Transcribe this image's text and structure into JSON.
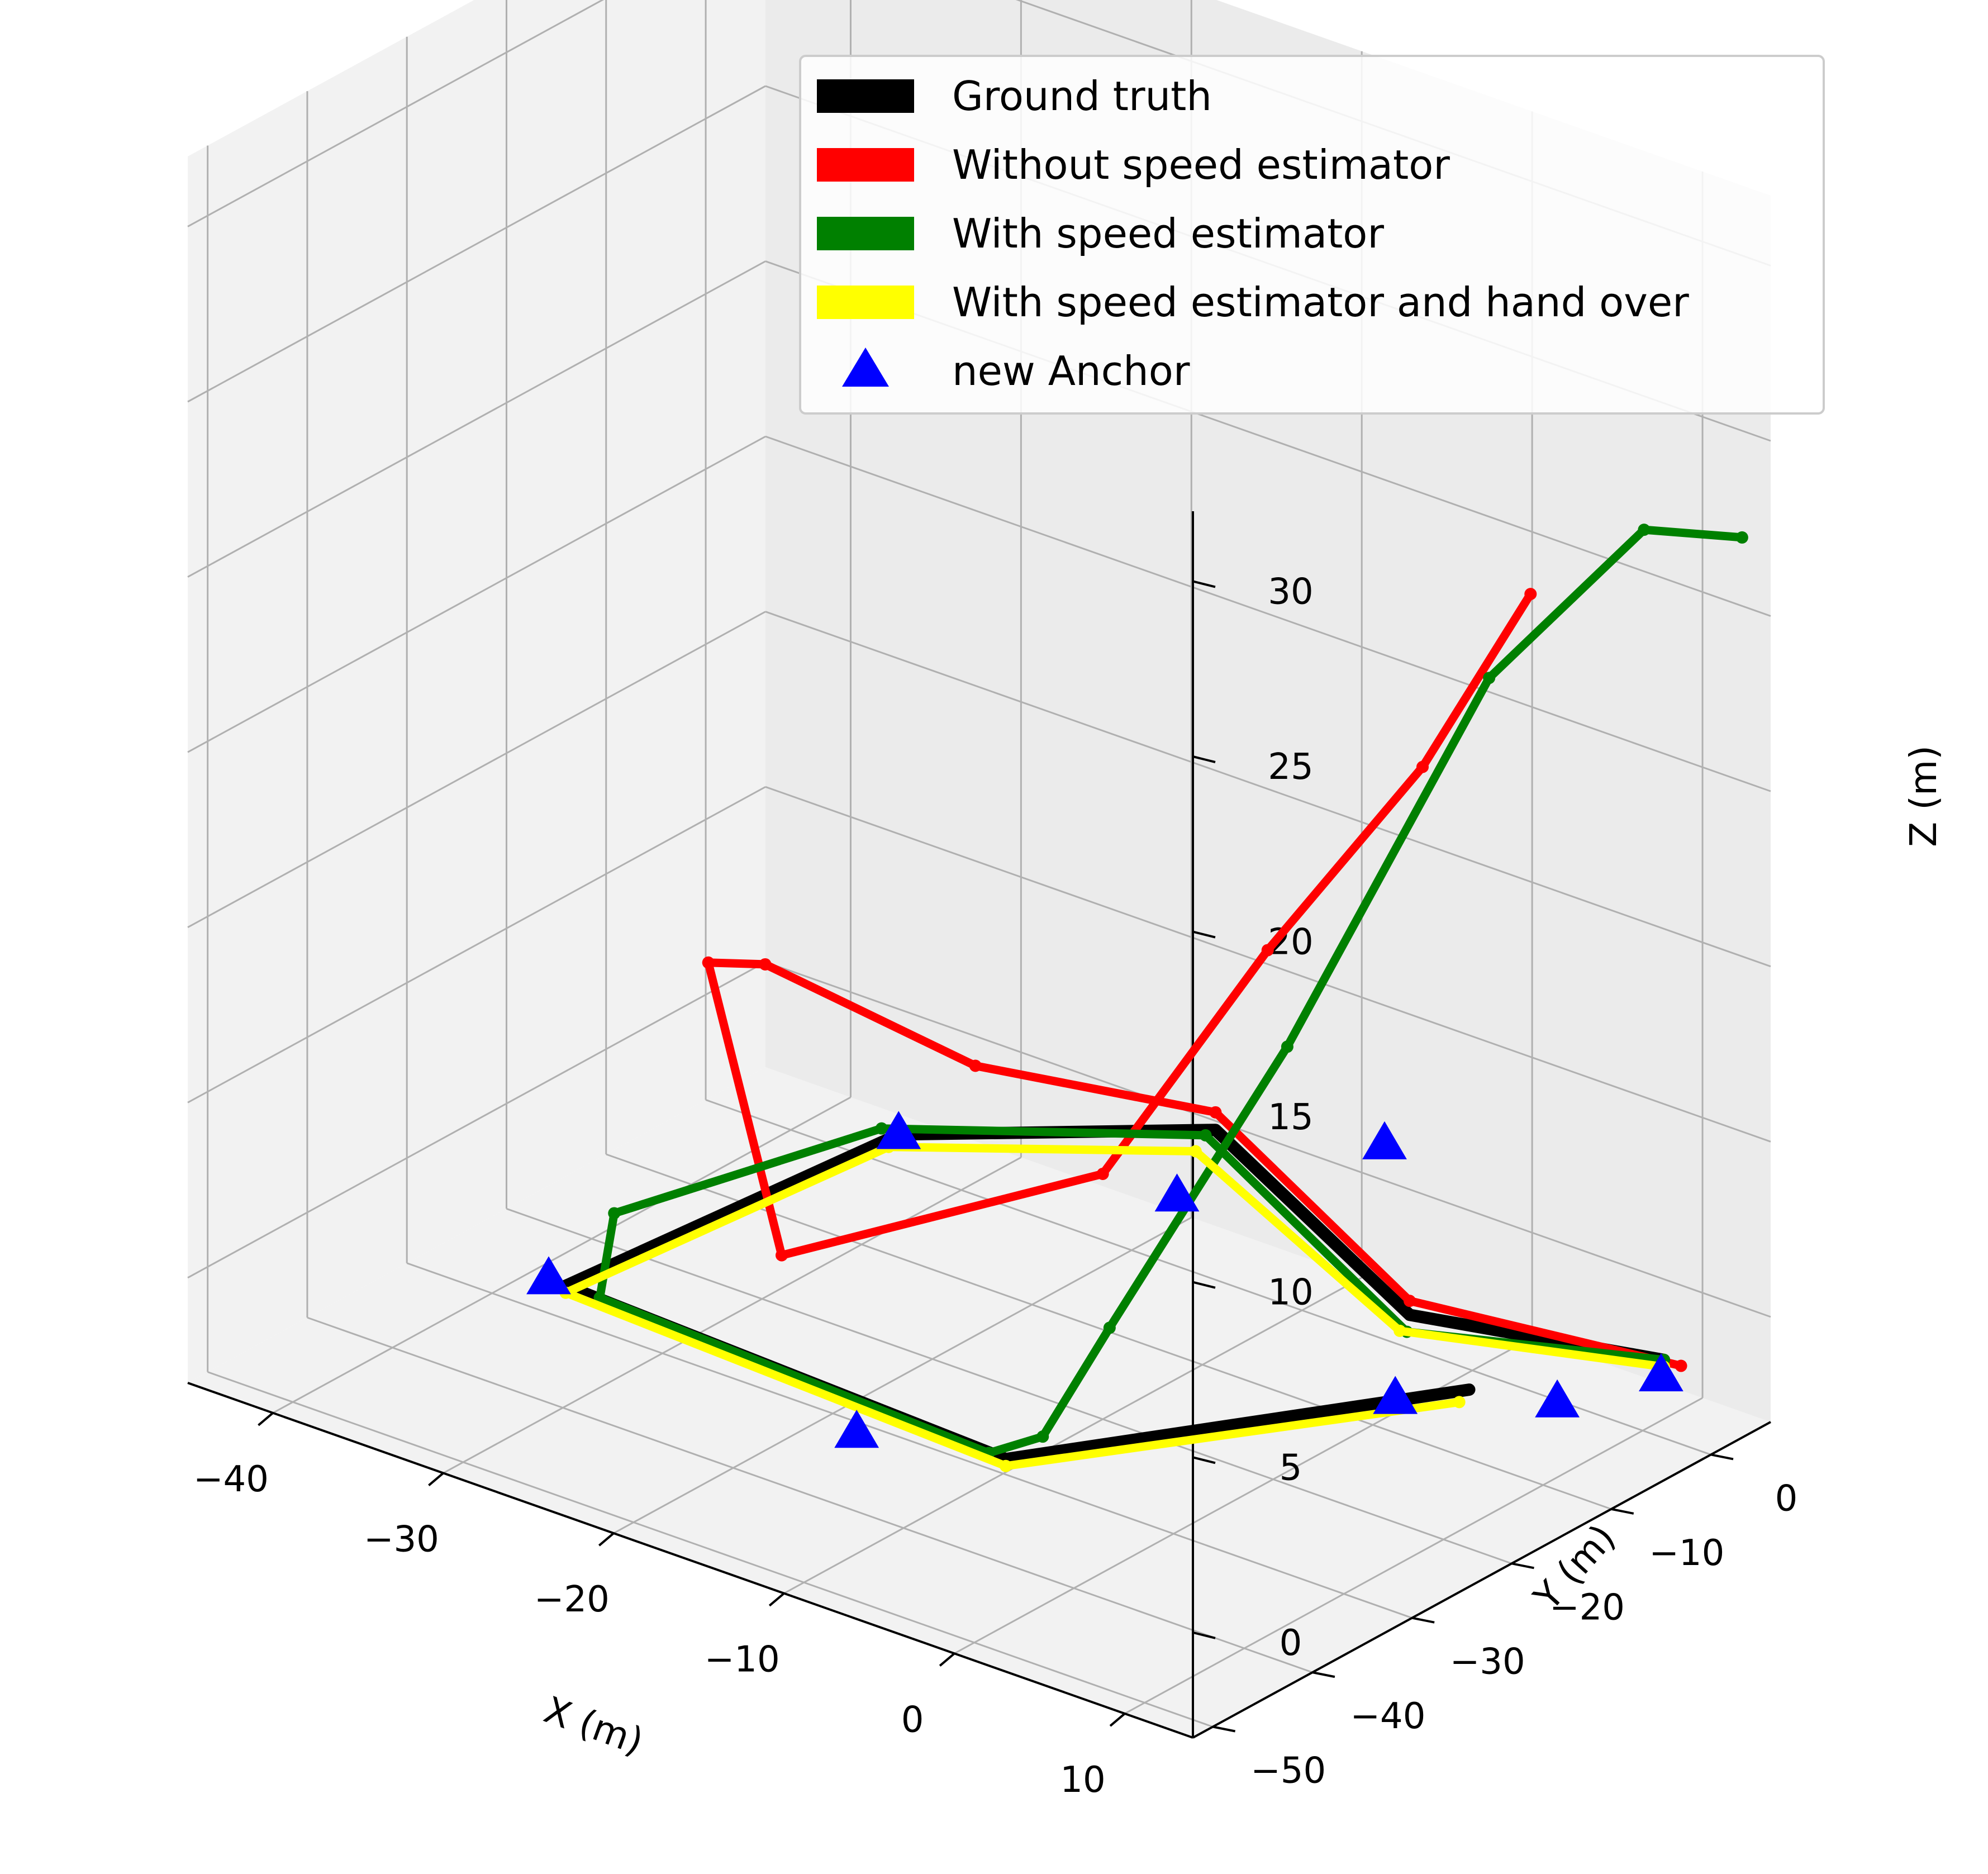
{
  "chart_data": {
    "type": "scatter",
    "projection": "3d",
    "xlabel": "X (m)",
    "ylabel": "Y (m)",
    "zlabel": "Z (m)",
    "xlim": [
      -45,
      14
    ],
    "ylim": [
      -52,
      6
    ],
    "zlim": [
      -3,
      32
    ],
    "x_ticks": [
      -40,
      -30,
      -20,
      -10,
      0,
      10
    ],
    "y_ticks": [
      0,
      -10,
      -20,
      -30,
      -40,
      -50
    ],
    "z_ticks": [
      0,
      5,
      10,
      15,
      20,
      25,
      30
    ],
    "x_tick_labels": [
      "−40",
      "−30",
      "−20",
      "−10",
      "0",
      "10"
    ],
    "y_tick_labels": [
      "0",
      "−10",
      "−20",
      "−30",
      "−40",
      "−50"
    ],
    "z_tick_labels": [
      "0",
      "5",
      "10",
      "15",
      "20",
      "25",
      "30"
    ],
    "grid": true,
    "legend_position": "top-right",
    "series": [
      {
        "name": "Ground truth",
        "color": "#000000",
        "marker": "line",
        "points": [
          [
            13,
            -3,
            0
          ],
          [
            1,
            -8,
            0
          ],
          [
            -18,
            5,
            0
          ],
          [
            -29,
            -8,
            0
          ],
          [
            -31,
            -38,
            0
          ],
          [
            -4,
            -40,
            0
          ],
          [
            8,
            -14,
            0
          ]
        ]
      },
      {
        "name": "Without speed estimator",
        "color": "#ff0000",
        "marker": "dots",
        "points": [
          [
            14,
            -3,
            0
          ],
          [
            1,
            -8,
            0.4
          ],
          [
            -18,
            5,
            0.5
          ],
          [
            -28,
            -2,
            1.2
          ],
          [
            -38,
            -6,
            3
          ],
          [
            -39,
            -10,
            3.5
          ],
          [
            -23,
            -30,
            1
          ],
          [
            -10,
            -20,
            4
          ],
          [
            -5,
            -12,
            10
          ],
          [
            0,
            -5,
            15
          ],
          [
            4,
            -1,
            20
          ]
        ]
      },
      {
        "name": "With speed estimator",
        "color": "#008000",
        "marker": "dots",
        "points": [
          [
            13,
            -3,
            0
          ],
          [
            2,
            -10,
            0
          ],
          [
            -18,
            4,
            0
          ],
          [
            -30,
            -8,
            0
          ],
          [
            -34,
            -28,
            0
          ],
          [
            -29,
            -38,
            0
          ],
          [
            -5,
            -40,
            0
          ],
          [
            -3,
            -38,
            0.5
          ],
          [
            -2,
            -33,
            3
          ],
          [
            2,
            -22,
            10
          ],
          [
            8,
            -12,
            20
          ],
          [
            13,
            -5,
            24
          ],
          [
            17,
            -2,
            24
          ]
        ]
      },
      {
        "name": "With speed estimator and hand over",
        "color": "#ffff00",
        "marker": "dots",
        "points": [
          [
            13,
            -3,
            -0.2
          ],
          [
            1,
            -9,
            -0.3
          ],
          [
            -18,
            3,
            -0.3
          ],
          [
            -29,
            -9,
            -0.2
          ],
          [
            -31,
            -38,
            -0.2
          ],
          [
            -4,
            -40,
            -0.2
          ],
          [
            8,
            -15,
            -0.2
          ]
        ]
      },
      {
        "name": "new Anchor",
        "color": "#0000ff",
        "marker": "triangle",
        "points": [
          [
            -29,
            -8,
            0
          ],
          [
            -32,
            -38,
            0
          ],
          [
            -11,
            -43,
            0
          ],
          [
            6,
            -18,
            0
          ],
          [
            -15,
            -4,
            0
          ],
          [
            -11,
            10,
            0
          ],
          [
            12,
            -12,
            0
          ],
          [
            14,
            -5,
            0
          ]
        ]
      }
    ]
  }
}
